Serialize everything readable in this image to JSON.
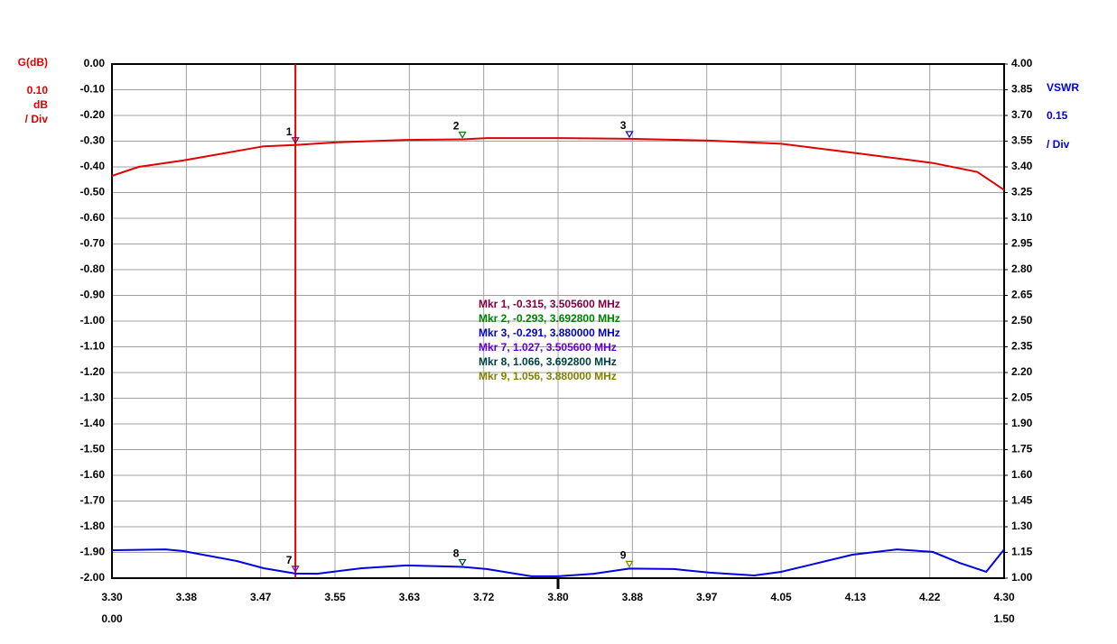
{
  "chart_data": {
    "type": "line",
    "y_label": "G(dB)",
    "y_scale_value": "0.10",
    "y_scale_unit": "dB",
    "y_scale_div": "/ Div",
    "y2_label": "VSWR",
    "y2_scale_value": "0.15",
    "y2_scale_div": "/ Div",
    "x_sub_start": "0.00",
    "x_sub_end": "1.50",
    "grid": true,
    "xlim": [
      3.3,
      4.3
    ],
    "xticks": [
      {
        "value": 3.3,
        "label": "3.30"
      },
      {
        "value": 3.38333,
        "label": "3.38"
      },
      {
        "value": 3.46667,
        "label": "3.47"
      },
      3.55,
      {
        "value": 3.63333,
        "label": "3.63"
      },
      {
        "value": 3.71667,
        "label": "3.72"
      },
      {
        "value": 3.8,
        "label": "3.80"
      },
      {
        "value": 3.88333,
        "label": "3.88"
      },
      {
        "value": 3.96667,
        "label": "3.97"
      },
      4.05,
      {
        "value": 4.13333,
        "label": "4.13"
      },
      {
        "value": 4.21667,
        "label": "4.22"
      },
      {
        "value": 4.3,
        "label": "4.30"
      }
    ],
    "ylim": [
      -2,
      0
    ],
    "yticks": [
      {
        "value": 0,
        "label": "0.00"
      },
      {
        "value": -0.1,
        "label": "-0.10"
      },
      {
        "value": -0.2,
        "label": "-0.20"
      },
      {
        "value": -0.3,
        "label": "-0.30"
      },
      {
        "value": -0.4,
        "label": "-0.40"
      },
      {
        "value": -0.5,
        "label": "-0.50"
      },
      {
        "value": -0.6,
        "label": "-0.60"
      },
      {
        "value": -0.7,
        "label": "-0.70"
      },
      {
        "value": -0.8,
        "label": "-0.80"
      },
      {
        "value": -0.9,
        "label": "-0.90"
      },
      {
        "value": -1,
        "label": "-1.00"
      },
      {
        "value": -1.1,
        "label": "-1.10"
      },
      {
        "value": -1.2,
        "label": "-1.20"
      },
      {
        "value": -1.3,
        "label": "-1.30"
      },
      {
        "value": -1.4,
        "label": "-1.40"
      },
      {
        "value": -1.5,
        "label": "-1.50"
      },
      {
        "value": -1.6,
        "label": "-1.60"
      },
      {
        "value": -1.7,
        "label": "-1.70"
      },
      {
        "value": -1.8,
        "label": "-1.80"
      },
      {
        "value": -1.9,
        "label": "-1.90"
      },
      {
        "value": -2,
        "label": "-2.00"
      }
    ],
    "y2lim": [
      1,
      4
    ],
    "y2ticks": [
      {
        "value": 4,
        "label": "4.00"
      },
      3.85,
      {
        "value": 3.7,
        "label": "3.70"
      },
      3.55,
      {
        "value": 3.4,
        "label": "3.40"
      },
      3.25,
      {
        "value": 3.1,
        "label": "3.10"
      },
      2.95,
      {
        "value": 2.8,
        "label": "2.80"
      },
      2.65,
      {
        "value": 2.5,
        "label": "2.50"
      },
      2.35,
      {
        "value": 2.2,
        "label": "2.20"
      },
      2.05,
      {
        "value": 1.9,
        "label": "1.90"
      },
      1.75,
      {
        "value": 1.6,
        "label": "1.60"
      },
      1.45,
      {
        "value": 1.3,
        "label": "1.30"
      },
      1.15,
      {
        "value": 1,
        "label": "1.00"
      }
    ],
    "cursor_x": 3.5056,
    "cursor_color": "#e00000",
    "series": [
      {
        "color": "#e00000",
        "axis": "y",
        "x": [
          3.3,
          3.33,
          3.38,
          3.47,
          3.5056,
          3.55,
          3.63,
          3.6928,
          3.72,
          3.8,
          3.88,
          3.97,
          4.05,
          4.13,
          4.22,
          4.27,
          4.3
        ],
        "values": [
          -0.435,
          -0.4,
          -0.375,
          -0.32,
          -0.315,
          -0.305,
          -0.295,
          -0.293,
          -0.288,
          -0.288,
          -0.291,
          -0.298,
          -0.31,
          -0.345,
          -0.385,
          -0.42,
          -0.49
        ]
      },
      {
        "color": "#0000e0",
        "axis": "y2",
        "x": [
          3.3,
          3.36,
          3.38,
          3.44,
          3.47,
          3.5056,
          3.53,
          3.58,
          3.63,
          3.6928,
          3.72,
          3.77,
          3.8,
          3.84,
          3.88,
          3.93,
          3.97,
          4.02,
          4.05,
          4.13,
          4.18,
          4.22,
          4.25,
          4.28,
          4.3
        ],
        "values": [
          1.163,
          1.168,
          1.158,
          1.1,
          1.058,
          1.027,
          1.026,
          1.058,
          1.074,
          1.066,
          1.053,
          1.011,
          1.011,
          1.026,
          1.056,
          1.053,
          1.032,
          1.016,
          1.037,
          1.137,
          1.168,
          1.153,
          1.089,
          1.037,
          1.168
        ]
      }
    ],
    "markers": [
      {
        "id": "1",
        "x": 3.5056,
        "value": -0.315,
        "axis": "y",
        "color": "#800040",
        "label": "Mkr 1, -0.315, 3.505600 MHz"
      },
      {
        "id": "2",
        "x": 3.6928,
        "value": -0.293,
        "axis": "y",
        "color": "#008000",
        "label": "Mkr 2, -0.293, 3.692800 MHz"
      },
      {
        "id": "3",
        "x": 3.88,
        "value": -0.291,
        "axis": "y",
        "color": "#0000c0",
        "label": "Mkr 3, -0.291, 3.880000 MHz"
      },
      {
        "id": "7",
        "x": 3.5056,
        "value": 1.027,
        "axis": "y2",
        "color": "#6000d0",
        "label": "Mkr 7, 1.027, 3.505600 MHz"
      },
      {
        "id": "8",
        "x": 3.6928,
        "value": 1.066,
        "axis": "y2",
        "color": "#004040",
        "label": "Mkr 8, 1.066, 3.692800 MHz"
      },
      {
        "id": "9",
        "x": 3.88,
        "value": 1.056,
        "axis": "y2",
        "color": "#808000",
        "label": "Mkr 9, 1.056, 3.880000 MHz"
      }
    ]
  }
}
